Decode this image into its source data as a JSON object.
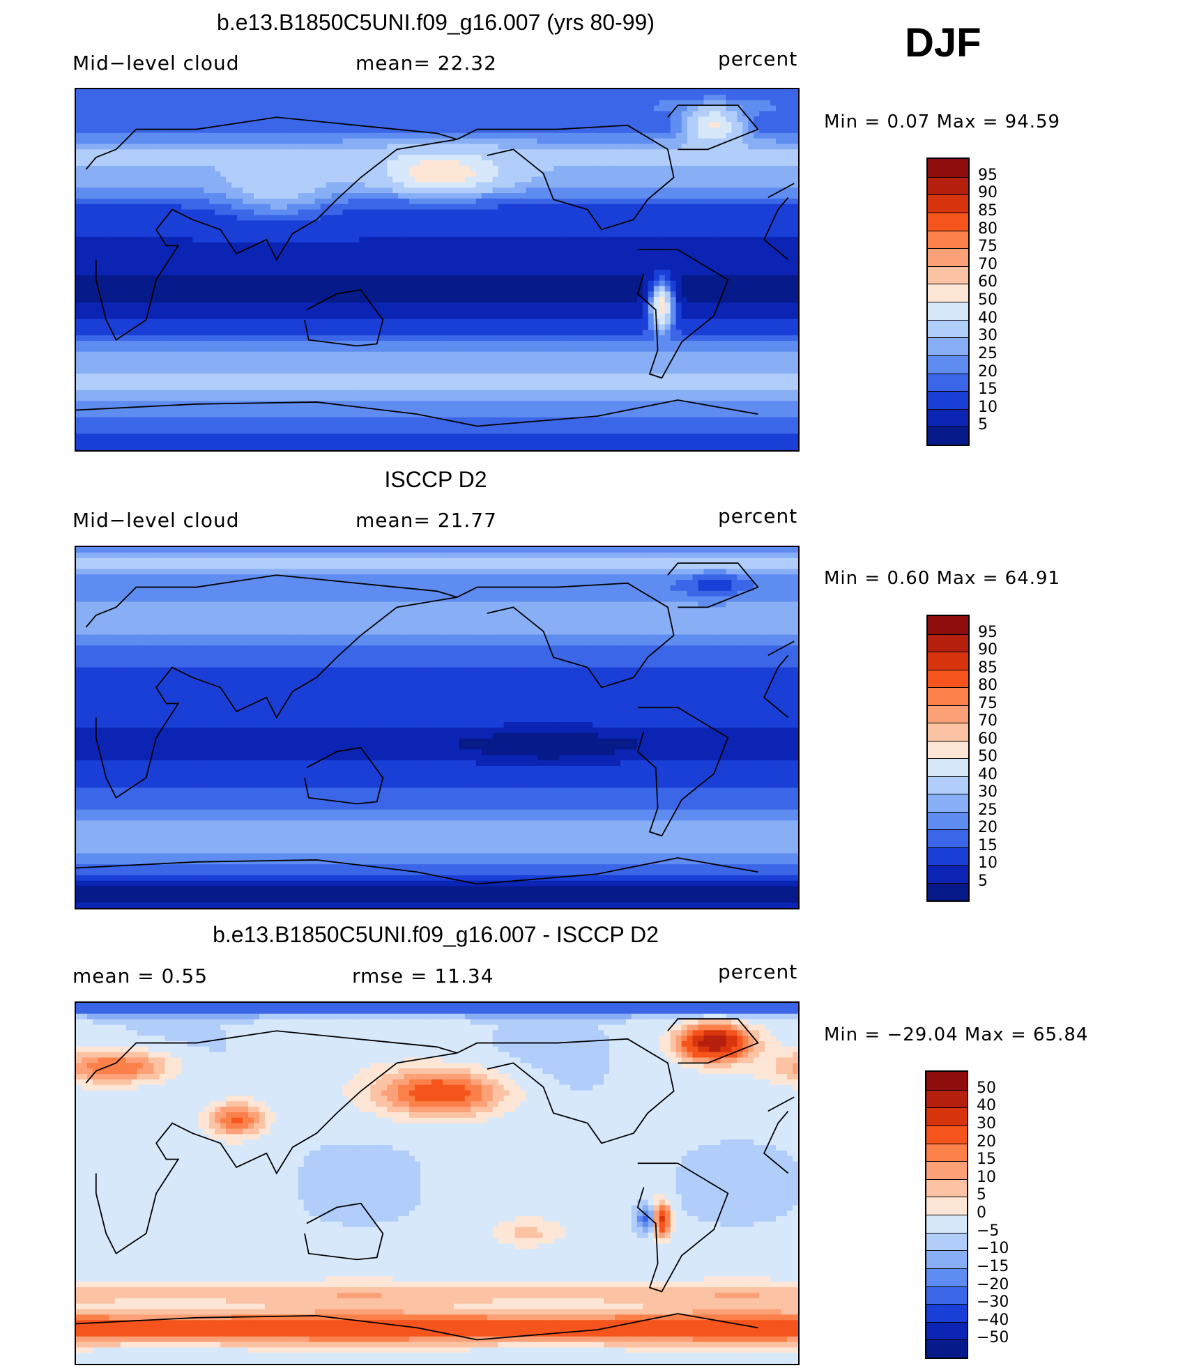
{
  "season": "DJF",
  "panels": [
    {
      "id": "model",
      "title": "b.e13.B1850C5UNI.f09_g16.007 (yrs 80-99)",
      "left_label": "Mid−level cloud",
      "center_label": "mean=   22.32",
      "units": "percent",
      "minmax": "Min  =     0.07  Max  =    94.59",
      "colorbar_labels": [
        "95",
        "90",
        "85",
        "80",
        "75",
        "70",
        "60",
        "50",
        "40",
        "30",
        "25",
        "20",
        "15",
        "10",
        "5"
      ],
      "colorbar_colors": [
        "#8f0d0d",
        "#b5200f",
        "#d8340e",
        "#f5541c",
        "#fb8049",
        "#fba077",
        "#fbc3a3",
        "#fde6d5",
        "#d8e8fb",
        "#b1cdfa",
        "#88aef5",
        "#5f8cf0",
        "#3b66e8",
        "#1a3fd7",
        "#0b24b4",
        "#061a8a"
      ],
      "field": "model"
    },
    {
      "id": "obs",
      "title": "ISCCP D2",
      "left_label": "Mid−level cloud",
      "center_label": "mean=   21.77",
      "units": "percent",
      "minmax": "Min  =     0.60  Max  =    64.91",
      "colorbar_labels": [
        "95",
        "90",
        "85",
        "80",
        "75",
        "70",
        "60",
        "50",
        "40",
        "30",
        "25",
        "20",
        "15",
        "10",
        "5"
      ],
      "colorbar_colors": [
        "#8f0d0d",
        "#b5200f",
        "#d8340e",
        "#f5541c",
        "#fb8049",
        "#fba077",
        "#fbc3a3",
        "#fde6d5",
        "#d8e8fb",
        "#b1cdfa",
        "#88aef5",
        "#5f8cf0",
        "#3b66e8",
        "#1a3fd7",
        "#0b24b4",
        "#061a8a"
      ],
      "field": "obs"
    },
    {
      "id": "diff",
      "title": "b.e13.B1850C5UNI.f09_g16.007 - ISCCP D2",
      "left_label": "mean  =     0.55",
      "center_label": "rmse  =    11.34",
      "units": "percent",
      "minmax": "Min  = −29.04  Max  =    65.84",
      "colorbar_labels": [
        "50",
        "40",
        "30",
        "20",
        "15",
        "10",
        "5",
        "0",
        "−5",
        "−10",
        "−15",
        "−20",
        "−30",
        "−40",
        "−50"
      ],
      "colorbar_colors": [
        "#8f0d0d",
        "#b5200f",
        "#d8340e",
        "#f5541c",
        "#fb8049",
        "#fba077",
        "#fbc3a3",
        "#fde6d5",
        "#d8e8fb",
        "#b1cdfa",
        "#88aef5",
        "#5f8cf0",
        "#3b66e8",
        "#1a3fd7",
        "#0b24b4",
        "#061a8a"
      ],
      "field": "diff"
    }
  ],
  "chart_data": {
    "type": "heatmap",
    "description_fields": "Global lat-lon contour maps of DJF mid-level cloud fraction (percent)",
    "maps": [
      {
        "title": "b.e13.B1850C5UNI.f09_g16.007 (yrs 80-99)",
        "variable": "Mid-level cloud",
        "units": "percent",
        "mean": 22.32,
        "min": 0.07,
        "max": 94.59,
        "levels": [
          5,
          10,
          15,
          20,
          25,
          30,
          40,
          50,
          60,
          70,
          75,
          80,
          85,
          90,
          95
        ]
      },
      {
        "title": "ISCCP D2",
        "variable": "Mid-level cloud",
        "units": "percent",
        "mean": 21.77,
        "min": 0.6,
        "max": 64.91,
        "levels": [
          5,
          10,
          15,
          20,
          25,
          30,
          40,
          50,
          60,
          70,
          75,
          80,
          85,
          90,
          95
        ]
      },
      {
        "title": "b.e13.B1850C5UNI.f09_g16.007 - ISCCP D2",
        "units": "percent",
        "mean": 0.55,
        "rmse": 11.34,
        "min": -29.04,
        "max": 65.84,
        "levels": [
          -50,
          -40,
          -30,
          -20,
          -15,
          -10,
          -5,
          0,
          5,
          10,
          15,
          20,
          30,
          40,
          50
        ]
      }
    ],
    "xlim": [
      0,
      360
    ],
    "ylim": [
      -90,
      90
    ]
  }
}
